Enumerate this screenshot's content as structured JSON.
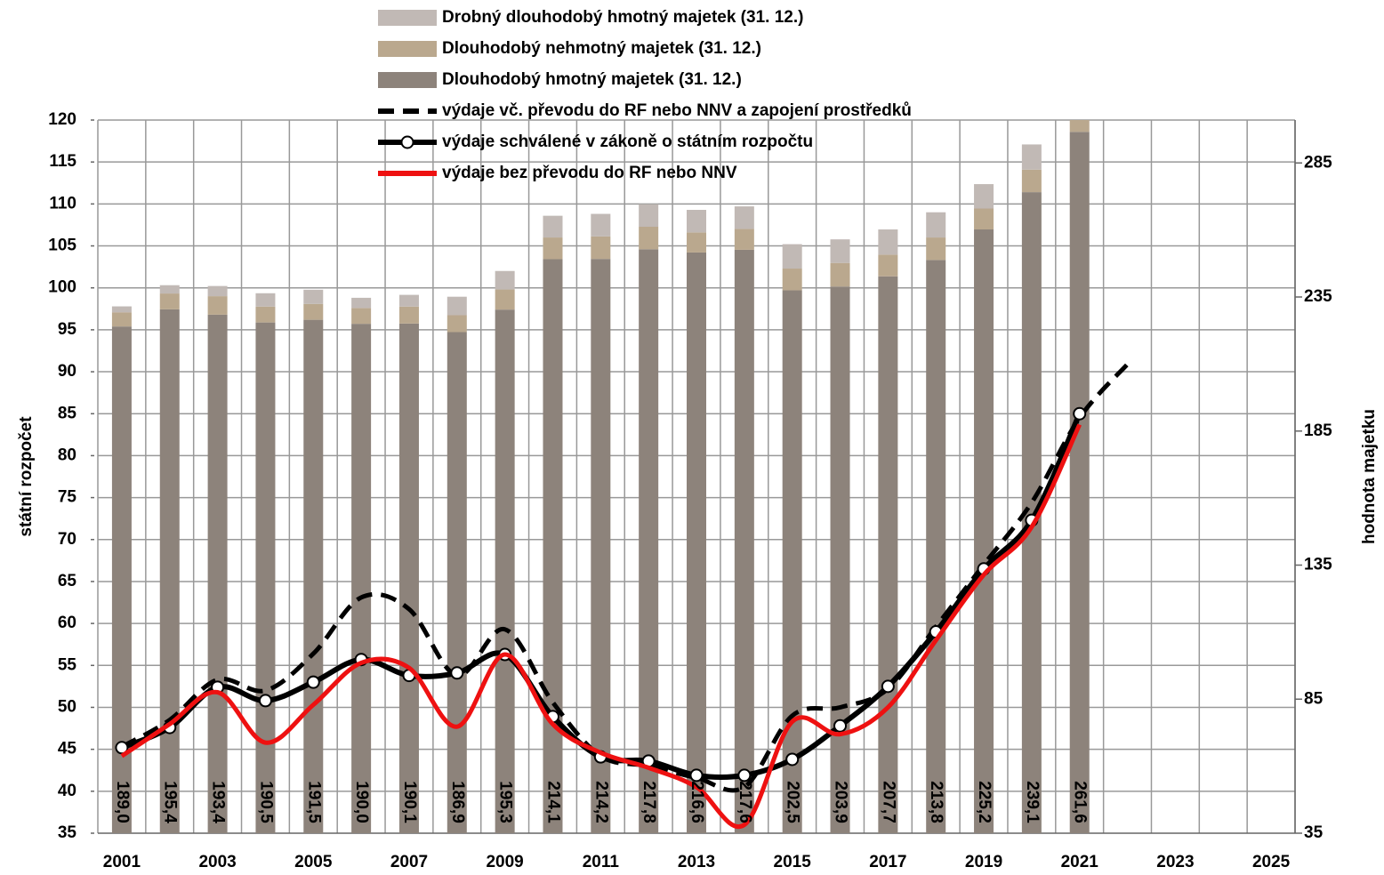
{
  "chart_data": {
    "type": "combo",
    "categories": [
      "2001",
      null,
      "2003",
      null,
      "2005",
      null,
      "2007",
      null,
      "2009",
      null,
      "2011",
      null,
      "2013",
      null,
      "2015",
      null,
      "2017",
      null,
      "2019",
      null,
      "2021",
      null,
      "2023",
      null,
      "2025"
    ],
    "ylabel": "státní rozpočet",
    "y2label": "hodnota majetku",
    "ylim": [
      35,
      120
    ],
    "yticks": [
      35,
      40,
      45,
      50,
      55,
      60,
      65,
      70,
      75,
      80,
      85,
      90,
      95,
      100,
      105,
      110,
      115,
      120
    ],
    "y2lim": [
      35,
      301
    ],
    "y2ticks": [
      35,
      85,
      135,
      185,
      235,
      285
    ],
    "y2color": "#ee1111",
    "grid": true,
    "series": [
      {
        "name": "Drobný dlouhodobý hmotný majetek (31. 12.)",
        "type": "bar",
        "axis": "y2",
        "color": "#c1b9b5",
        "values": [
          2.2,
          3.1,
          3.8,
          5.0,
          5.3,
          3.8,
          4.4,
          6.9,
          6.9,
          8.1,
          8.4,
          8.4,
          8.4,
          8.4,
          9.1,
          8.8,
          9.4,
          9.4,
          9.1,
          9.4,
          6.0,
          null,
          null,
          null,
          null
        ]
      },
      {
        "name": "Dlouhodobý nehmotný majetek (31. 12.)",
        "type": "bar",
        "axis": "y2",
        "color": "#baa88e",
        "values": [
          5.3,
          5.9,
          6.9,
          5.9,
          5.9,
          5.9,
          6.3,
          6.3,
          7.5,
          8.1,
          8.4,
          8.4,
          7.5,
          7.8,
          8.1,
          8.8,
          8.1,
          8.4,
          7.8,
          8.4,
          8.8,
          null,
          null,
          null,
          null
        ]
      },
      {
        "name": "Dlouhodobý hmotný majetek (31. 12.)",
        "type": "bar",
        "axis": "y2",
        "color": "#8d837b",
        "values": [
          189.0,
          195.4,
          193.4,
          190.5,
          191.5,
          190.0,
          190.1,
          186.9,
          195.3,
          214.1,
          214.2,
          217.8,
          216.6,
          217.6,
          202.5,
          203.9,
          207.7,
          213.8,
          225.2,
          239.1,
          261.6,
          null,
          null,
          null,
          null
        ],
        "value_labels": [
          "189,0",
          "195,4",
          "193,4",
          "190,5",
          "191,5",
          "190,0",
          "190,1",
          "186,9",
          "195,3",
          "214,1",
          "214,2",
          "217,8",
          "216,6",
          "217,6",
          "202,5",
          "203,9",
          "207,7",
          "213,8",
          "225,2",
          "239,1",
          "261,6",
          null,
          null,
          null,
          null
        ]
      },
      {
        "name": "výdaje vč. převodu do RF nebo NNV a zapojení prostředků",
        "type": "line",
        "dash": true,
        "color": "#000000",
        "values": [
          45.3,
          48.5,
          53.3,
          52.0,
          56.4,
          63.1,
          61.7,
          53.8,
          59.3,
          50.6,
          44.2,
          43.0,
          41.6,
          40.5,
          49.0,
          50.0,
          52.2,
          59.6,
          67.0,
          74.4,
          84.5,
          90.9,
          null,
          null,
          null
        ]
      },
      {
        "name": "výdaje schválené v zákoně o státním rozpočtu",
        "type": "line",
        "marker": true,
        "color": "#000000",
        "values": [
          45.2,
          47.6,
          52.4,
          50.8,
          53.0,
          55.7,
          53.8,
          54.1,
          56.3,
          48.9,
          44.1,
          43.6,
          41.9,
          41.9,
          43.8,
          47.8,
          52.5,
          59.0,
          66.5,
          72.3,
          85.0,
          null,
          null,
          null,
          null
        ]
      },
      {
        "name": "výdaje bez převodu do RF nebo NNV",
        "type": "line",
        "color": "#ee1111",
        "values": [
          44.2,
          48.0,
          51.8,
          45.8,
          50.3,
          55.3,
          54.7,
          47.7,
          56.3,
          48.0,
          44.6,
          42.8,
          40.5,
          36.0,
          48.3,
          46.8,
          50.0,
          58.0,
          65.8,
          71.5,
          83.7,
          null,
          null,
          null,
          null
        ]
      }
    ]
  }
}
